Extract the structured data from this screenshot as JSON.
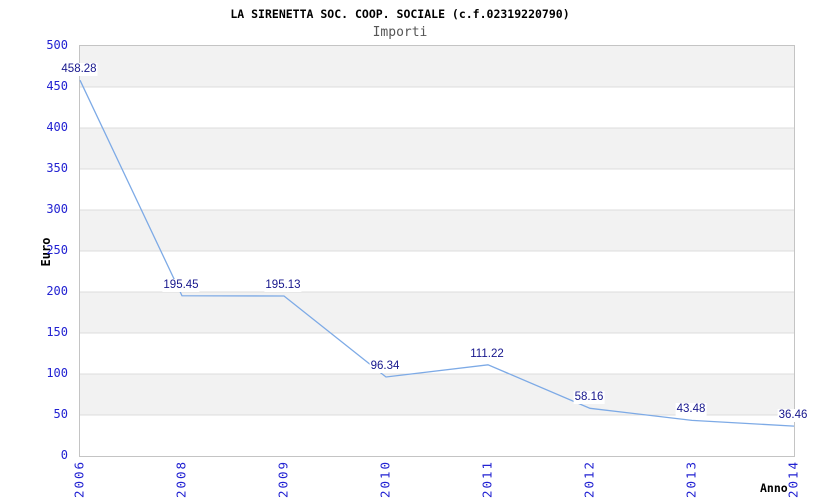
{
  "chart_data": {
    "type": "line",
    "title": "LA SIRENETTA SOC. COOP. SOCIALE (c.f.02319220790)",
    "subtitle": "Importi",
    "xlabel": "Anno",
    "ylabel": "Euro",
    "categories": [
      "2006",
      "2008",
      "2009",
      "2010",
      "2011",
      "2012",
      "2013",
      "2014"
    ],
    "series": [
      {
        "name": "Importi",
        "values": [
          458.28,
          195.45,
          195.13,
          96.34,
          111.22,
          58.16,
          43.48,
          36.46
        ],
        "point_labels": [
          "458.28",
          "195.45",
          "195.13",
          "96.34",
          "111.22",
          "58.16",
          "43.48",
          "36.46"
        ]
      }
    ],
    "ylim": [
      0,
      500
    ],
    "y_ticks": [
      500,
      450,
      400,
      350,
      300,
      250,
      200,
      150,
      100,
      50,
      0
    ],
    "grid": "horizontal gridlines with alternating gray/white bands, no vertical gridlines",
    "legend_position": "none",
    "colors": {
      "line": "#7daae6",
      "tick_label": "#2222d2",
      "point_label": "#16168c",
      "band_gray": "#f2f2f2",
      "gridline": "#dcdcdc",
      "plot_border": "#c4c4c4",
      "title": "#000000",
      "subtitle": "#565656"
    }
  }
}
